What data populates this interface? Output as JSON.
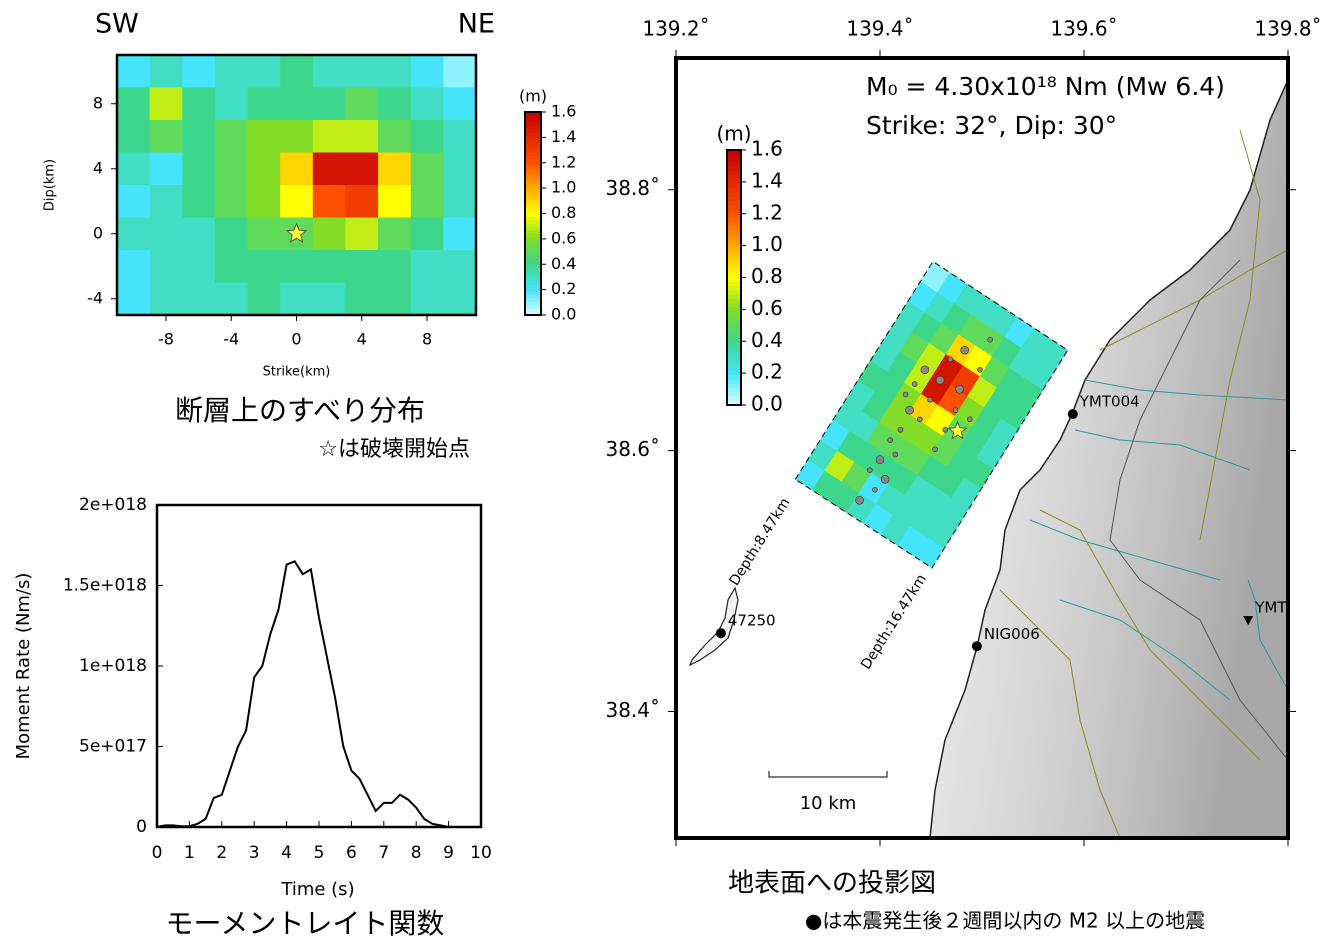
{
  "chart_data": [
    {
      "type": "heatmap",
      "title_left": "SW",
      "title_right": "NE",
      "xlabel": "Strike(km)",
      "ylabel": "Dip(km)",
      "x": [
        -10,
        -8,
        -6,
        -4,
        -2,
        0,
        2,
        4,
        6,
        8,
        10
      ],
      "y": [
        10,
        8,
        6,
        4,
        2,
        0,
        -2,
        -4
      ],
      "z": [
        [
          0.2,
          0.3,
          0.2,
          0.3,
          0.3,
          0.4,
          0.3,
          0.3,
          0.3,
          0.2,
          0.1
        ],
        [
          0.4,
          0.7,
          0.4,
          0.3,
          0.4,
          0.4,
          0.4,
          0.5,
          0.4,
          0.3,
          0.2
        ],
        [
          0.4,
          0.5,
          0.4,
          0.5,
          0.6,
          0.6,
          0.7,
          0.7,
          0.5,
          0.4,
          0.3
        ],
        [
          0.3,
          0.2,
          0.4,
          0.5,
          0.6,
          0.9,
          1.5,
          1.5,
          0.9,
          0.5,
          0.3
        ],
        [
          0.2,
          0.3,
          0.4,
          0.5,
          0.6,
          0.8,
          1.2,
          1.3,
          0.8,
          0.5,
          0.3
        ],
        [
          0.3,
          0.3,
          0.3,
          0.4,
          0.5,
          0.5,
          0.6,
          0.7,
          0.5,
          0.4,
          0.2
        ],
        [
          0.2,
          0.3,
          0.3,
          0.4,
          0.4,
          0.4,
          0.4,
          0.4,
          0.4,
          0.3,
          0.3
        ],
        [
          0.2,
          0.3,
          0.3,
          0.3,
          0.4,
          0.3,
          0.3,
          0.4,
          0.4,
          0.3,
          0.3
        ]
      ],
      "xlim": [
        -11,
        11
      ],
      "ylim": [
        -5,
        11
      ],
      "xticks": [
        -8,
        -4,
        0,
        4,
        8
      ],
      "yticks": [
        -4,
        0,
        4,
        8
      ],
      "hypocenter": {
        "x": 0,
        "y": 0
      },
      "colorbar_label": "(m)",
      "clim": [
        0,
        1.6
      ],
      "cticks": [
        {
          "value": 0,
          "label": "0.0"
        },
        0.2,
        0.4,
        0.6,
        0.8,
        {
          "value": 1,
          "label": "1.0"
        },
        1.2,
        1.4,
        1.6
      ],
      "caption": "断層上のすべり分布",
      "note": "☆は破壊開始点"
    },
    {
      "type": "line",
      "xlabel": "Time (s)",
      "ylabel": "Moment Rate (Nm/s)",
      "x": [
        0,
        0.25,
        0.5,
        0.75,
        1,
        1.25,
        1.5,
        1.75,
        2,
        2.25,
        2.5,
        2.75,
        3,
        3.25,
        3.5,
        3.75,
        4,
        4.25,
        4.5,
        4.75,
        5,
        5.25,
        5.5,
        5.75,
        6,
        6.25,
        6.5,
        6.75,
        7,
        7.25,
        7.5,
        7.75,
        8,
        8.25,
        8.5,
        8.75,
        9
      ],
      "values": [
        0,
        1e+16,
        1e+16,
        5000000000000000.0,
        5000000000000000.0,
        2e+16,
        5e+16,
        1.8e+17,
        2e+17,
        3.5e+17,
        5e+17,
        6e+17,
        9.3e+17,
        1e+18,
        1.2e+18,
        1.35e+18,
        1.63e+18,
        1.65e+18,
        1.57e+18,
        1.6e+18,
        1.3e+18,
        1.05e+18,
        8e+17,
        5e+17,
        3.5e+17,
        3e+17,
        2e+17,
        1e+17,
        1.5e+17,
        1.5e+17,
        2e+17,
        1.7e+17,
        1.2e+17,
        5e+16,
        2e+16,
        1e+16,
        0
      ],
      "color": "#000000",
      "xlim": [
        0,
        10
      ],
      "ylim": [
        0,
        2e+18
      ],
      "xticks": [
        0,
        1,
        2,
        3,
        4,
        5,
        6,
        7,
        8,
        9,
        10
      ],
      "yticks": [
        0,
        {
          "value": 5e+17,
          "label": "5e+017"
        },
        {
          "value": 1e+18,
          "label": "1e+018"
        },
        {
          "value": 1.5e+18,
          "label": "1.5e+018"
        },
        {
          "value": 2e+18,
          "label": "2e+018"
        }
      ],
      "caption": "モーメントレイト関数"
    },
    {
      "type": "map",
      "annotation_moment": "M₀ = 4.30x10¹⁸ Nm (Mw 6.4)",
      "annotation_mechanism": "Strike: 32°, Dip: 30°",
      "xlim": [
        139.2,
        139.8
      ],
      "ylim": [
        38.303,
        38.901
      ],
      "xticks": [
        {
          "value": 139.2,
          "label": "139.2˚"
        },
        {
          "value": 139.4,
          "label": "139.4˚"
        },
        {
          "value": 139.6,
          "label": "139.6˚"
        },
        {
          "value": 139.8,
          "label": "139.8˚"
        }
      ],
      "yticks": [
        {
          "value": 38.4,
          "label": "38.4˚"
        },
        {
          "value": 38.6,
          "label": "38.6˚"
        },
        {
          "value": 38.8,
          "label": "38.8˚"
        }
      ],
      "fault_outline": {
        "x": [
          139.317,
          139.452,
          139.584,
          139.451
        ],
        "y": [
          38.578,
          38.745,
          38.677,
          38.51
        ]
      },
      "depth_top": "Depth:8.47km",
      "depth_bottom": "Depth:16.47km",
      "epicenter": {
        "x": 139.476,
        "y": 38.615
      },
      "aftershocks": {
        "x": [
          139.459,
          139.449,
          139.469,
          139.478,
          139.439,
          139.42,
          139.4,
          139.39,
          139.41,
          139.429,
          139.464,
          139.454,
          139.483,
          139.498,
          139.488,
          139.38,
          139.395,
          139.425,
          139.444,
          139.508,
          139.474,
          139.405,
          139.415,
          139.434
        ],
        "y": [
          38.654,
          38.639,
          38.67,
          38.647,
          38.624,
          38.616,
          38.593,
          38.585,
          38.608,
          38.631,
          38.616,
          38.601,
          38.677,
          38.662,
          38.624,
          38.562,
          38.57,
          38.643,
          38.662,
          38.685,
          38.631,
          38.578,
          38.597,
          38.651
        ]
      },
      "stations": [
        {
          "name": "YMT004",
          "x": 139.589,
          "y": 38.628,
          "marker": "circle"
        },
        {
          "name": "NIG006",
          "x": 139.495,
          "y": 38.45,
          "marker": "circle"
        },
        {
          "name": "47250",
          "x": 139.244,
          "y": 38.46,
          "marker": "circle"
        },
        {
          "name": "YMT",
          "x": 139.761,
          "y": 38.47,
          "marker": "triangle"
        }
      ],
      "scale_label": "10 km",
      "caption": "地表面への投影図",
      "note": "●は本震発生後２週間以内の M2 以上の地震"
    }
  ]
}
